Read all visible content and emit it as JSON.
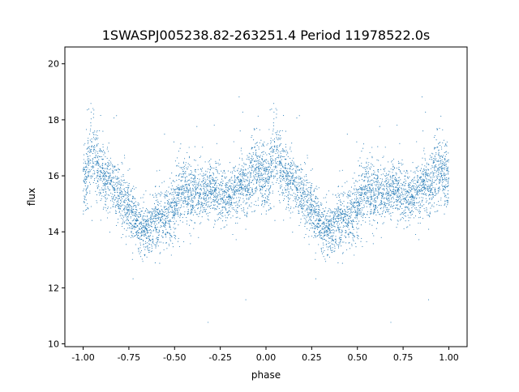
{
  "chart_data": {
    "type": "scatter",
    "title": "1SWASPJ005238.82-263251.4 Period 11978522.0s",
    "xlabel": "phase",
    "ylabel": "flux",
    "xlim": [
      -1.1,
      1.1
    ],
    "ylim": [
      9.9,
      20.6
    ],
    "xticks": [
      "-1.00",
      "-0.75",
      "-0.50",
      "-0.25",
      "0.00",
      "0.25",
      "0.50",
      "0.75",
      "1.00"
    ],
    "xtick_values": [
      -1.0,
      -0.75,
      -0.5,
      -0.25,
      0,
      0.25,
      0.5,
      0.75,
      1.0
    ],
    "yticks": [
      "10",
      "12",
      "14",
      "16",
      "18",
      "20"
    ],
    "ytick_values": [
      10,
      12,
      14,
      16,
      18,
      20
    ],
    "grid": false,
    "marker_color": "#1f77b4",
    "series": [
      {
        "description_note": "",
        "phase_profile": {
          "phase": [
            0.0,
            0.05,
            0.1,
            0.15,
            0.2,
            0.25,
            0.3,
            0.35,
            0.4,
            0.45,
            0.5,
            0.55,
            0.6,
            0.65,
            0.7,
            0.75,
            0.8,
            0.85,
            0.9,
            0.95,
            1.0
          ],
          "median_flux": [
            15.8,
            16.8,
            16.0,
            15.8,
            15.3,
            14.8,
            14.2,
            14.0,
            14.5,
            14.4,
            15.0,
            15.5,
            15.3,
            15.4,
            15.5,
            15.4,
            15.3,
            15.6,
            15.8,
            16.2,
            15.8
          ],
          "scatter_std": [
            0.6,
            0.7,
            0.55,
            0.5,
            0.5,
            0.5,
            0.45,
            0.45,
            0.5,
            0.55,
            0.6,
            0.6,
            0.5,
            0.45,
            0.45,
            0.45,
            0.45,
            0.5,
            0.55,
            0.6,
            0.6
          ]
        }
      }
    ]
  }
}
